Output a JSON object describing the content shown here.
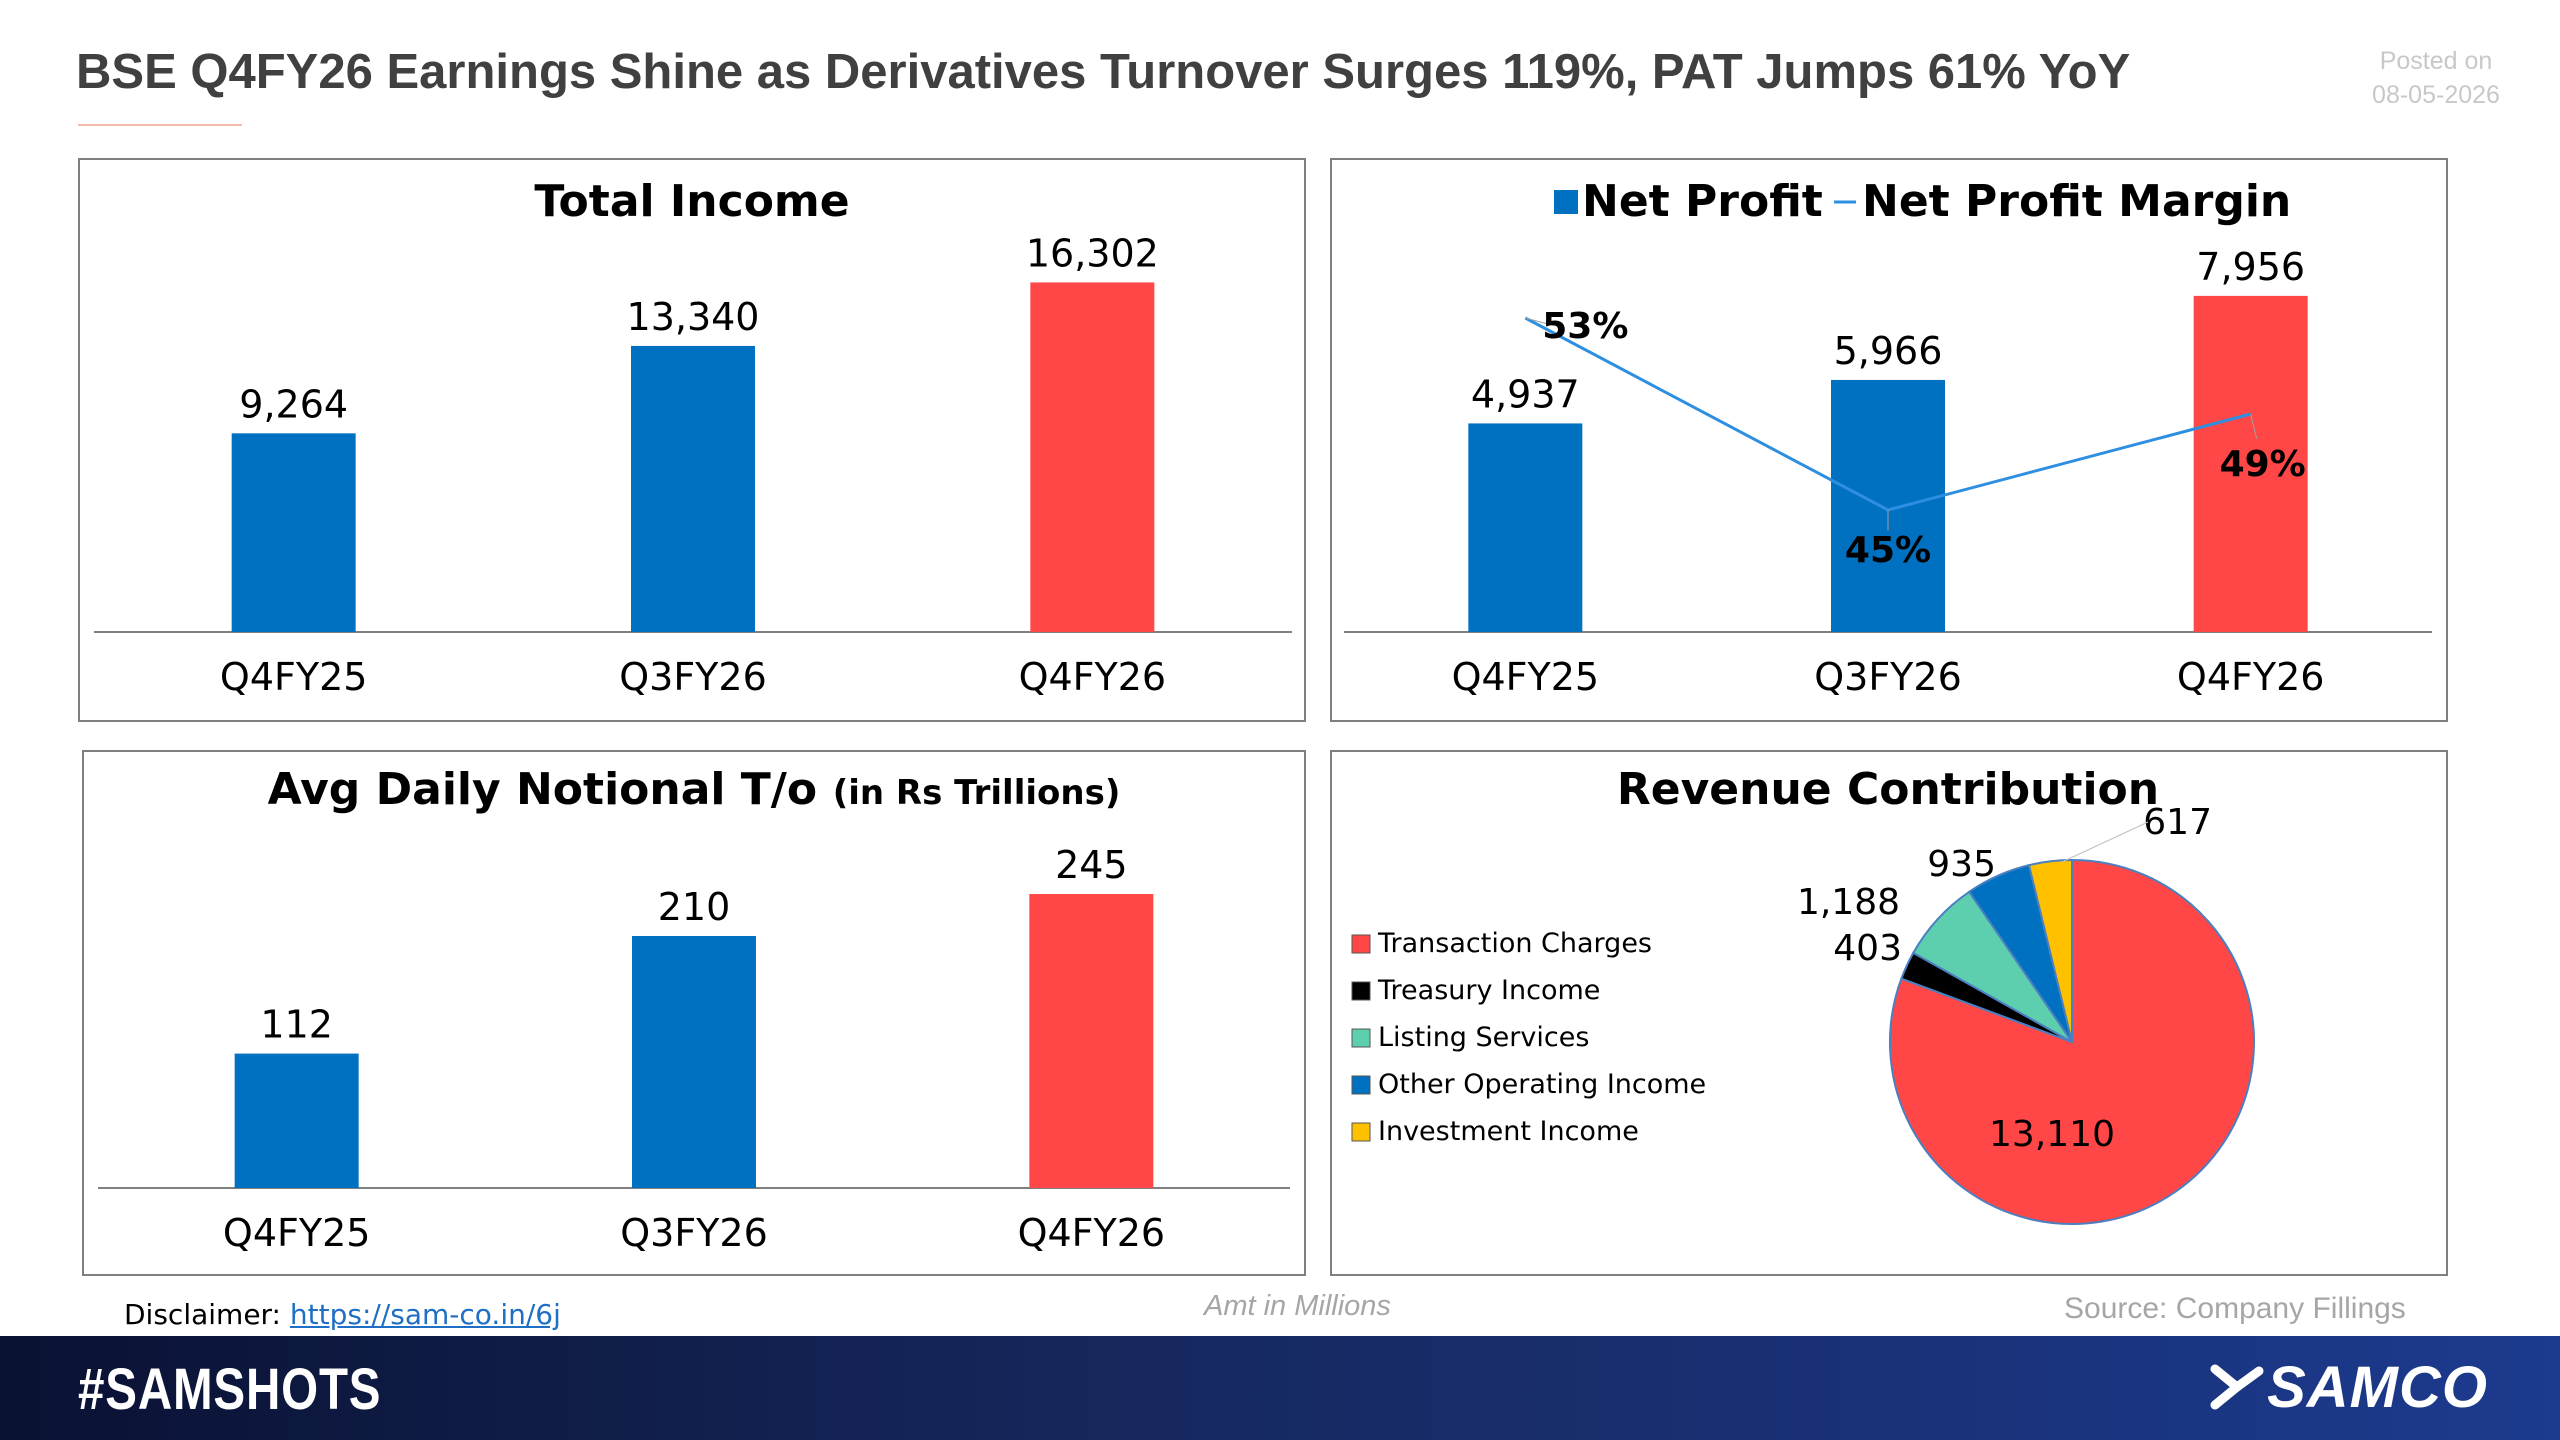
{
  "header": {
    "title": "BSE Q4FY26 Earnings Shine as Derivatives Turnover Surges 119%, PAT Jumps 61% YoY",
    "posted_label": "Posted on",
    "posted_date": "08-05-2026"
  },
  "footer": {
    "disclaimer_label": "Disclaimer:",
    "disclaimer_link": "https://sam-co.in/6j",
    "units_note": "Amt in Millions",
    "source": "Source: Company Fillings"
  },
  "bottom_bar": {
    "hashtag": "#SAMSHOTS",
    "brand": "SAMCO"
  },
  "colors": {
    "blue": "#0070c0",
    "red": "#ff4747",
    "line": "#2e8fe0",
    "pie_treasury": "#000000",
    "pie_listing": "#5dcfae",
    "pie_other": "#0070c0",
    "pie_investment": "#ffc000"
  },
  "chart_data": [
    {
      "type": "bar",
      "title": "Total Income",
      "categories": [
        "Q4FY25",
        "Q3FY26",
        "Q4FY26"
      ],
      "values": [
        9264,
        13340,
        16302
      ],
      "value_labels": [
        "9,264",
        "13,340",
        "16,302"
      ],
      "highlight_index": 2,
      "ylim": [
        0,
        18000
      ]
    },
    {
      "type": "bar",
      "title_bars": "Net Profit",
      "title_line": "Net Profit Margin",
      "categories": [
        "Q4FY25",
        "Q3FY26",
        "Q4FY26"
      ],
      "series": [
        {
          "name": "Net Profit",
          "values": [
            4937,
            5966,
            7956
          ],
          "labels": [
            "4,937",
            "5,966",
            "7,956"
          ]
        },
        {
          "name": "Net Profit Margin",
          "values": [
            53,
            45,
            49
          ],
          "labels": [
            "53%",
            "45%",
            "49%"
          ]
        }
      ],
      "highlight_index": 2,
      "ylim": [
        0,
        8900
      ],
      "ylim_secondary": [
        40,
        55
      ]
    },
    {
      "type": "bar",
      "title": "Avg Daily Notional T/o",
      "title_suffix": "(in Rs Trillions)",
      "categories": [
        "Q4FY25",
        "Q3FY26",
        "Q4FY26"
      ],
      "values": [
        112,
        210,
        245
      ],
      "value_labels": [
        "112",
        "210",
        "245"
      ],
      "highlight_index": 2,
      "ylim": [
        0,
        300
      ]
    },
    {
      "type": "pie",
      "title": "Revenue Contribution",
      "labels": [
        "Transaction Charges",
        "Treasury Income",
        "Listing Services",
        "Other Operating Income",
        "Investment Income"
      ],
      "values": [
        13110,
        403,
        1188,
        935,
        617
      ],
      "value_labels": [
        "13,110",
        "403",
        "1,188",
        "935",
        "617"
      ],
      "legend": "left"
    }
  ]
}
